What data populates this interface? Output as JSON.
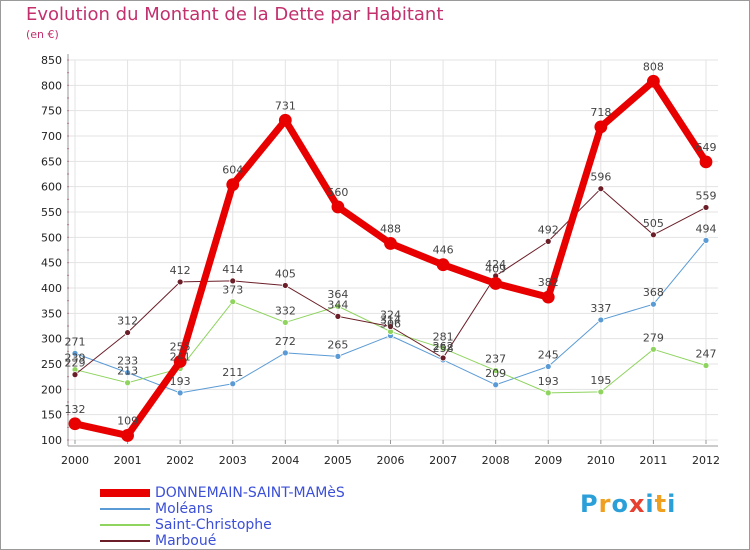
{
  "header": {
    "title": "Evolution du Montant de la Dette par Habitant",
    "unit": "(en €)"
  },
  "logo": {
    "text": "Proxiti",
    "colors": [
      "#2a9fd8",
      "#f0a020",
      "#2a9fd8",
      "#e84030",
      "#2a9fd8",
      "#f0a020",
      "#2a9fd8"
    ]
  },
  "chart_data": {
    "type": "line",
    "title": "Evolution du Montant de la Dette par Habitant",
    "ylabel": "(en €)",
    "xlabel": "",
    "categories": [
      "2000",
      "2001",
      "2002",
      "2003",
      "2004",
      "2005",
      "2006",
      "2007",
      "2008",
      "2009",
      "2010",
      "2011",
      "2012"
    ],
    "ylim": [
      100,
      850
    ],
    "yticks": [
      100,
      150,
      200,
      250,
      300,
      350,
      400,
      450,
      500,
      550,
      600,
      650,
      700,
      750,
      800,
      850
    ],
    "grid": true,
    "legend": "bottom-left",
    "series": [
      {
        "name": "DONNEMAIN-SAINT-MAMèS",
        "color": "#e80000",
        "width": 7,
        "values": [
          132,
          109,
          255,
          604,
          731,
          560,
          488,
          446,
          409,
          382,
          718,
          808,
          649
        ]
      },
      {
        "name": "Moléans",
        "color": "#5b9bd5",
        "width": 1,
        "values": [
          271,
          233,
          193,
          211,
          272,
          265,
          306,
          258,
          209,
          245,
          337,
          368,
          494
        ]
      },
      {
        "name": "Saint-Christophe",
        "color": "#8fd45f",
        "width": 1,
        "values": [
          239,
          213,
          241,
          373,
          332,
          364,
          314,
          281,
          237,
          193,
          195,
          279,
          247
        ]
      },
      {
        "name": "Marboué",
        "color": "#6b1e28",
        "width": 1,
        "values": [
          229,
          312,
          412,
          414,
          405,
          344,
          324,
          262,
          424,
          492,
          596,
          505,
          559
        ]
      }
    ]
  }
}
